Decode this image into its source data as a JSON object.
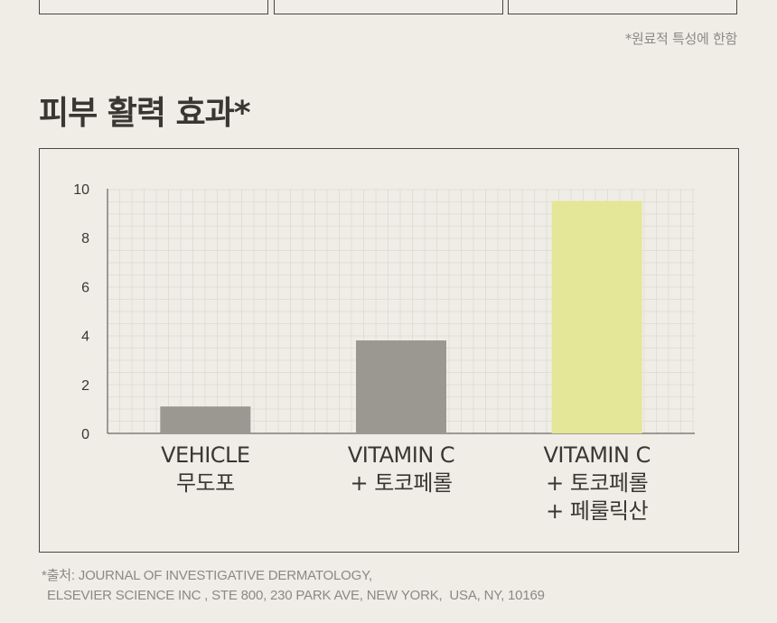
{
  "disclaimer": "*원료적 특성에 한함",
  "title": "피부 활력 효과*",
  "source": {
    "line1": "*출처: JOURNAL OF INVESTIGATIVE DERMATOLOGY,",
    "line2": "ELSEVIER SCIENCE INC , STE 800, 230 PARK AVE, NEW YORK,  USA, NY, 10169"
  },
  "chart_data": {
    "type": "bar",
    "title": "피부 활력 효과*",
    "xlabel": "",
    "ylabel": "",
    "ylim": [
      0,
      10
    ],
    "yticks": [
      0,
      2,
      4,
      6,
      8,
      10
    ],
    "grid": true,
    "categories": [
      [
        "VEHICLE",
        "무도포"
      ],
      [
        "VITAMIN C",
        "+ 토코페롤"
      ],
      [
        "VITAMIN C",
        "+ 토코페롤",
        "+ 페룰릭산"
      ]
    ],
    "values": [
      1.1,
      3.8,
      9.5
    ],
    "colors": [
      "#9a9891",
      "#9a9891",
      "#e4e698"
    ]
  }
}
